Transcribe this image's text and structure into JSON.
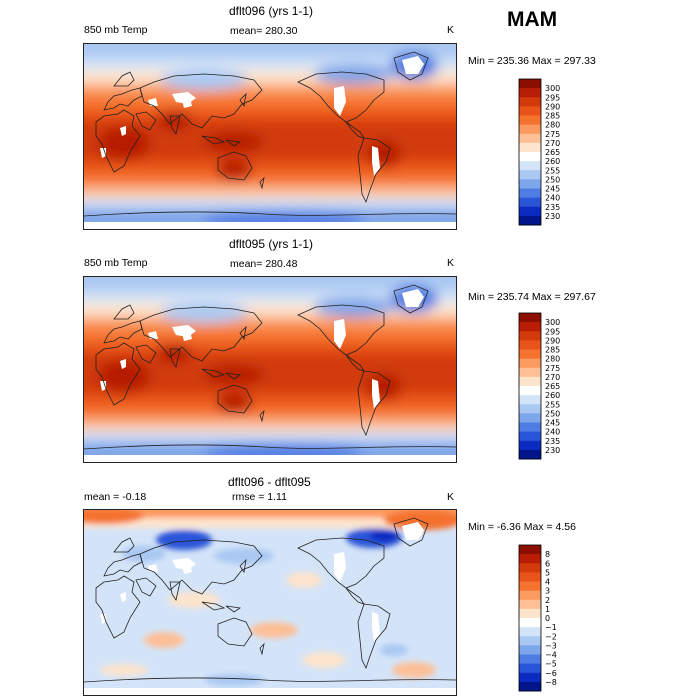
{
  "season": "MAM",
  "chart_data": [
    {
      "type": "heatmap",
      "title": "dflt096 (yrs 1-1)",
      "variable": "850 mb Temp",
      "stat_text": "mean= 280.30",
      "units": "K",
      "range_text": "Min = 235.36 Max = 297.33",
      "min": 235.36,
      "max": 297.33,
      "mean": 280.3,
      "colorbar_levels": [
        "300",
        "295",
        "290",
        "285",
        "280",
        "275",
        "270",
        "265",
        "260",
        "255",
        "250",
        "245",
        "240",
        "235",
        "230"
      ],
      "colors": [
        "#8a0f00",
        "#b71e05",
        "#d13a0b",
        "#e95218",
        "#f5722f",
        "#fb9a5e",
        "#fdc097",
        "#fde4cd",
        "#ffffff",
        "#d4e4f8",
        "#a9c8f2",
        "#7ea6ea",
        "#4f7de4",
        "#2955d8",
        "#0c2bc1",
        "#021689"
      ],
      "mean_k": 280.3
    },
    {
      "type": "heatmap",
      "title": "dflt095 (yrs 1-1)",
      "variable": "850 mb Temp",
      "stat_text": "mean= 280.48",
      "units": "K",
      "range_text": "Min = 235.74 Max = 297.67",
      "min": 235.74,
      "max": 297.67,
      "mean": 280.48,
      "colorbar_levels": [
        "300",
        "295",
        "290",
        "285",
        "280",
        "275",
        "270",
        "265",
        "260",
        "255",
        "250",
        "245",
        "240",
        "235",
        "230"
      ],
      "colors": [
        "#8a0f00",
        "#b71e05",
        "#d13a0b",
        "#e95218",
        "#f5722f",
        "#fb9a5e",
        "#fdc097",
        "#fde4cd",
        "#ffffff",
        "#d4e4f8",
        "#a9c8f2",
        "#7ea6ea",
        "#4f7de4",
        "#2955d8",
        "#0c2bc1",
        "#021689"
      ],
      "mean_k": 280.48
    },
    {
      "type": "heatmap",
      "title": "dflt096 - dflt095",
      "stat_text": "mean =   -0.18",
      "rmse_text": "rmse =    1.11",
      "units": "K",
      "range_text": "Min =  -6.36 Max =   4.56",
      "min": -6.36,
      "max": 4.56,
      "mean": -0.18,
      "rmse": 1.11,
      "colorbar_levels": [
        "8",
        "6",
        "5",
        "4",
        "3",
        "2",
        "1",
        "0",
        "−1",
        "−2",
        "−3",
        "−4",
        "−5",
        "−6",
        "−8"
      ],
      "colors": [
        "#8a0f00",
        "#b71e05",
        "#d13a0b",
        "#e95218",
        "#f5722f",
        "#fb9a5e",
        "#fdc097",
        "#fde4cd",
        "#ffffff",
        "#d4e4f8",
        "#a9c8f2",
        "#7ea6ea",
        "#4f7de4",
        "#2955d8",
        "#0c2bc1",
        "#021689"
      ]
    }
  ]
}
